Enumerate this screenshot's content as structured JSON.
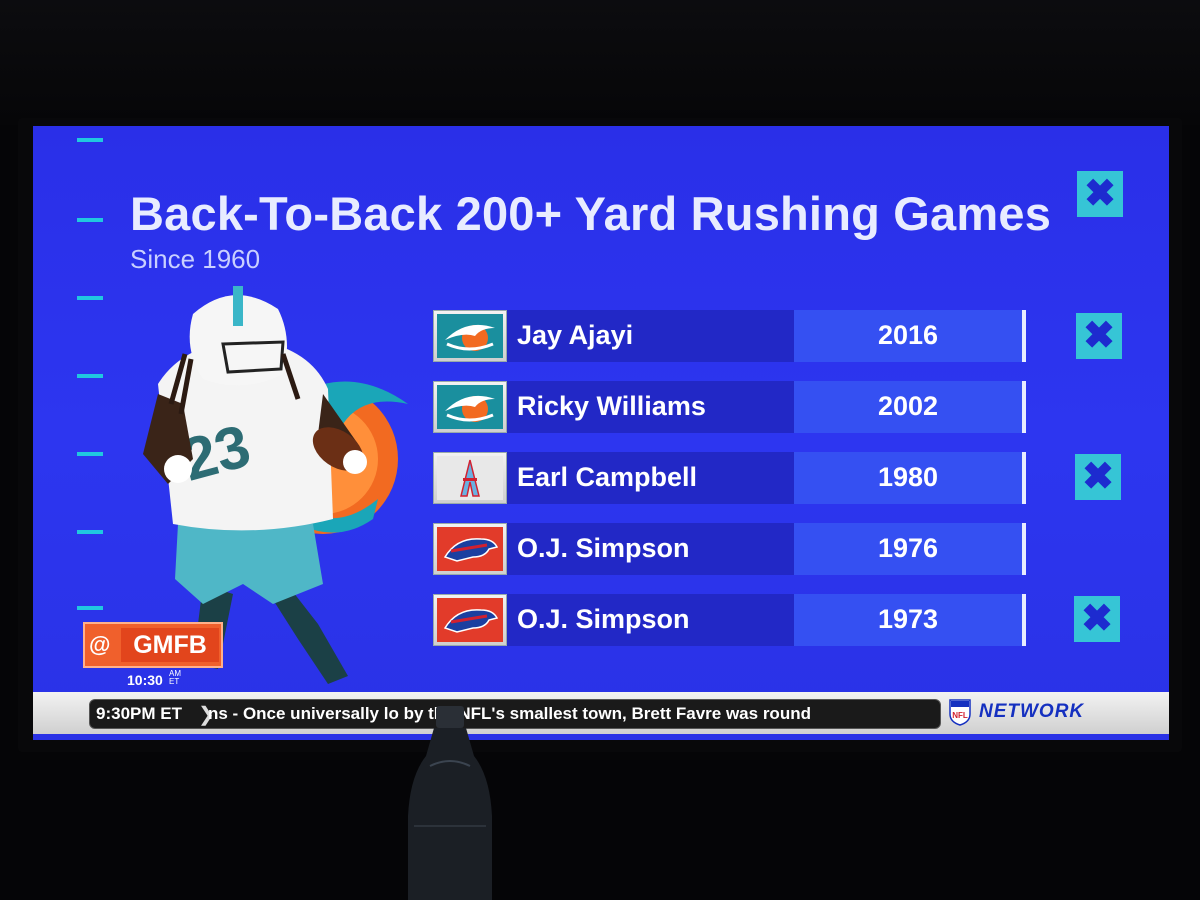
{
  "graphic": {
    "title": "Back-To-Back 200+ Yard Rushing Games",
    "subtitle": "Since 1960",
    "rows": [
      {
        "team_logo": "dolphins-logo",
        "player": "Jay Ajayi",
        "year": "2016"
      },
      {
        "team_logo": "dolphins-logo",
        "player": "Ricky Williams",
        "year": "2002"
      },
      {
        "team_logo": "oilers-logo",
        "player": "Earl Campbell",
        "year": "1980"
      },
      {
        "team_logo": "bills-logo",
        "player": "O.J. Simpson",
        "year": "1976"
      },
      {
        "team_logo": "bills-logo",
        "player": "O.J. Simpson",
        "year": "1973"
      }
    ],
    "x_marker": "✖"
  },
  "bug": {
    "at": "@",
    "show": "GMFB",
    "time": "10:30",
    "am": "AM",
    "tz": "ET"
  },
  "ticker": {
    "time": "9:30PM ET",
    "text": "ns - Once universally lo      by the NFL's smallest town, Brett Favre was round",
    "network": "NETWORK"
  },
  "colors": {
    "screen_blue": "#2d36f0",
    "accent_cyan": "#36c5d6",
    "gmfb_orange": "#f0602c"
  }
}
